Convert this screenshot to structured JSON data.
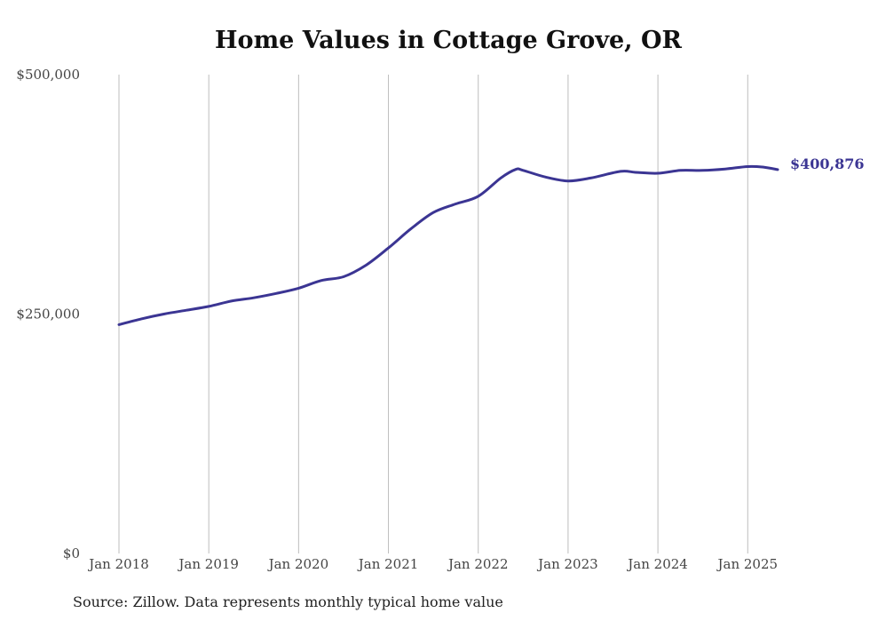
{
  "chart_data": {
    "type": "line",
    "title": "Home Values in Cottage Grove, OR",
    "xlabel": "",
    "ylabel": "",
    "x_tick_labels": [
      "Jan 2018",
      "Jan 2019",
      "Jan 2020",
      "Jan 2021",
      "Jan 2022",
      "Jan 2023",
      "Jan 2024",
      "Jan 2025"
    ],
    "y_ticks": [
      0,
      250000,
      500000
    ],
    "y_tick_labels": [
      "$0",
      "$250,000",
      "$500,000"
    ],
    "ylim": [
      0,
      500000
    ],
    "xlim": [
      "2018-01",
      "2025-05"
    ],
    "grid": "vertical",
    "line_color": "#3b3593",
    "series": [
      {
        "x": [
          "2018-01",
          "2018-04",
          "2018-07",
          "2018-10",
          "2019-01",
          "2019-04",
          "2019-07",
          "2019-10",
          "2020-01",
          "2020-04",
          "2020-07",
          "2020-10",
          "2021-01",
          "2021-04",
          "2021-07",
          "2021-10",
          "2022-01",
          "2022-04",
          "2022-06",
          "2022-07",
          "2022-10",
          "2023-01",
          "2023-04",
          "2023-08",
          "2023-10",
          "2024-01",
          "2024-04",
          "2024-07",
          "2024-10",
          "2025-01",
          "2025-03",
          "2025-05"
        ],
        "values": [
          239000,
          245000,
          250000,
          254000,
          258000,
          263500,
          267000,
          271500,
          277000,
          285000,
          289000,
          301000,
          319000,
          339000,
          356000,
          365000,
          373000,
          392000,
          401000,
          400000,
          393000,
          389000,
          392000,
          399000,
          398000,
          397000,
          400000,
          400000,
          401500,
          404000,
          403500,
          400876
        ]
      }
    ],
    "end_label": "$400,876"
  },
  "source_note": "Source: Zillow. Data represents monthly typical home value"
}
